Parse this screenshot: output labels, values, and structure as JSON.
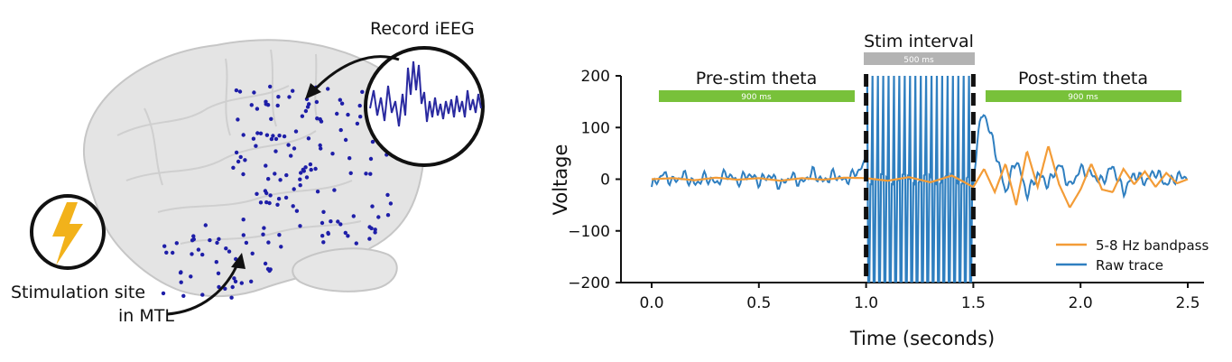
{
  "left_panel": {
    "record_label": "Record iEEG",
    "stim_label_line1": "Stimulation site",
    "stim_label_line2": "in MTL",
    "lightning_icon": "lightning-bolt-icon",
    "colors": {
      "electrode": "#1e1ea8",
      "lightning": "#f2b21b",
      "inset_trace": "#2a2aa0",
      "brain_fill": "#e4e4e4",
      "brain_edge": "#c6c6c6"
    }
  },
  "right_panel": {
    "stim_interval_label": "Stim interval",
    "stim_interval_bar": "500 ms",
    "pre_stim_label": "Pre-stim theta",
    "pre_stim_bar": "900 ms",
    "post_stim_label": "Post-stim theta",
    "post_stim_bar": "900 ms",
    "colors": {
      "green_bar": "#78c13a",
      "gray_bar": "#b3b3b3",
      "raw_trace": "#2f7fc0",
      "bandpass": "#f39c37"
    }
  },
  "chart_data": {
    "type": "line",
    "xlabel": "Time (seconds)",
    "ylabel": "Voltage",
    "xlim": [
      -0.1,
      2.55
    ],
    "ylim": [
      -200,
      200
    ],
    "x_ticks": [
      0.0,
      0.5,
      1.0,
      1.5,
      2.0,
      2.5
    ],
    "x_tick_labels": [
      "0.0",
      "0.5",
      "1.0",
      "1.5",
      "2.0",
      "2.5"
    ],
    "y_ticks": [
      -200,
      -100,
      0,
      100,
      200
    ],
    "y_tick_labels": [
      "−200",
      "−100",
      "0",
      "100",
      "200"
    ],
    "stim_markers": [
      1.0,
      1.5
    ],
    "legend_placement": "lower-right",
    "grid": false,
    "series": [
      {
        "name": "5-8 Hz bandpass",
        "color": "#f39c37",
        "x": [
          0.0,
          0.1,
          0.2,
          0.3,
          0.4,
          0.5,
          0.6,
          0.7,
          0.8,
          0.9,
          1.0,
          1.1,
          1.2,
          1.3,
          1.4,
          1.5,
          1.55,
          1.6,
          1.65,
          1.7,
          1.75,
          1.8,
          1.85,
          1.9,
          1.95,
          2.0,
          2.05,
          2.1,
          2.15,
          2.2,
          2.25,
          2.3,
          2.35,
          2.4,
          2.45,
          2.5
        ],
        "y": [
          0,
          2,
          -2,
          3,
          -1,
          2,
          -3,
          2,
          -1,
          3,
          2,
          -3,
          4,
          -6,
          7,
          -15,
          20,
          -25,
          30,
          -50,
          55,
          -15,
          65,
          -10,
          -55,
          -20,
          30,
          -20,
          -25,
          20,
          -10,
          15,
          -15,
          12,
          -8,
          0
        ]
      },
      {
        "name": "Raw trace",
        "color": "#2f7fc0",
        "x": [
          0.0,
          0.05,
          0.1,
          0.15,
          0.2,
          0.25,
          0.3,
          0.35,
          0.4,
          0.45,
          0.5,
          0.55,
          0.6,
          0.65,
          0.7,
          0.75,
          0.8,
          0.85,
          0.9,
          0.95,
          1.0,
          1.5,
          1.52,
          1.55,
          1.6,
          1.65,
          1.7,
          1.75,
          1.8,
          1.85,
          1.9,
          1.95,
          2.0,
          2.05,
          2.1,
          2.15,
          2.2,
          2.25,
          2.3,
          2.35,
          2.4,
          2.45,
          2.5
        ],
        "y": [
          -15,
          10,
          -5,
          8,
          -10,
          5,
          -8,
          12,
          -6,
          10,
          -5,
          8,
          -12,
          6,
          -8,
          14,
          -5,
          10,
          -4,
          12,
          30,
          -20,
          90,
          130,
          60,
          -25,
          40,
          -30,
          10,
          -10,
          30,
          -15,
          20,
          10,
          -5,
          25,
          -25,
          10,
          -5,
          15,
          -10,
          5,
          5
        ]
      }
    ]
  }
}
